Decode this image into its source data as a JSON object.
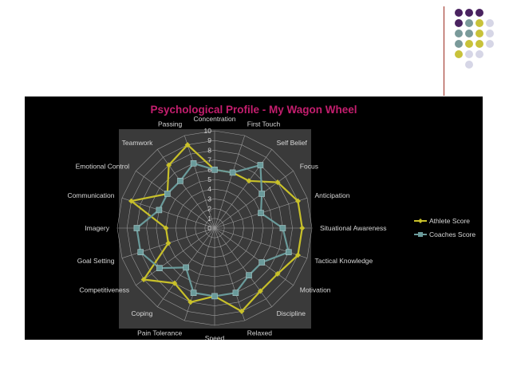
{
  "colors": {
    "background": "#ffffff",
    "chart_background": "#000000",
    "plot_area": "#3a3a3a",
    "grid": "#9a9a9a",
    "title": "#c41e6e",
    "athlete": "#c8c02a",
    "coaches": "#6a9a9a",
    "dot_purple": "#4a2360",
    "dot_teal": "#7a9a9a",
    "dot_olive": "#c8c23a",
    "dot_lavender": "#d6d6e6",
    "divider": "#9b2a1e"
  },
  "chart_data": {
    "type": "radar",
    "title": "Psychological Profile - My Wagon Wheel",
    "categories": [
      "Concentration",
      "First Touch",
      "Self Belief",
      "Focus",
      "Anticipation",
      "Situational Awareness",
      "Tactical Knowledge",
      "Motivation",
      "Discipline",
      "Relaxed",
      "Speed",
      "Pain Tolerance",
      "Coping",
      "Competitiveness",
      "Goal Setting",
      "Imagery",
      "Communication",
      "Emotional Control",
      "Teamwork",
      "Passing"
    ],
    "rlim": [
      0,
      10
    ],
    "ticks": [
      0,
      1,
      2,
      3,
      4,
      5,
      6,
      7,
      8,
      9,
      10
    ],
    "series": [
      {
        "name": "Athlete Score",
        "color": "#c8c02a",
        "values": [
          6,
          6,
          6,
          8,
          9,
          9,
          9,
          8,
          8,
          9,
          7,
          8,
          7,
          9,
          5,
          5,
          9,
          6,
          8,
          9
        ]
      },
      {
        "name": "Coaches Score",
        "color": "#6a9a9a",
        "values": [
          6,
          6,
          8,
          6,
          5,
          7,
          8,
          6,
          6,
          7,
          7,
          7,
          5,
          7,
          8,
          8,
          6,
          6,
          6,
          7
        ]
      }
    ],
    "legend_position": "right",
    "grid": true
  }
}
